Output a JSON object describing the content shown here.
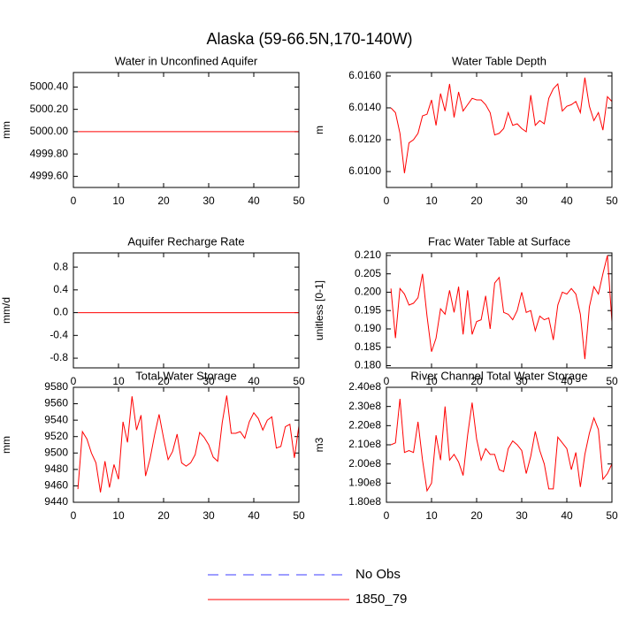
{
  "title": "Alaska (59-66.5N,170-140W)",
  "legend": [
    {
      "name": "No Obs",
      "color": "#3c3cff",
      "dashed": true
    },
    {
      "name": "1850_79",
      "color": "#ff0000",
      "dashed": false
    }
  ],
  "chart_data": [
    {
      "type": "line",
      "title": "Water in Unconfined Aquifer",
      "ylabel": "mm",
      "x": [
        1,
        2,
        3,
        4,
        5,
        6,
        7,
        8,
        9,
        10,
        11,
        12,
        13,
        14,
        15,
        16,
        17,
        18,
        19,
        20,
        21,
        22,
        23,
        24,
        25,
        26,
        27,
        28,
        29,
        30,
        31,
        32,
        33,
        34,
        35,
        36,
        37,
        38,
        39,
        40,
        41,
        42,
        43,
        44,
        45,
        46,
        47,
        48,
        49,
        50
      ],
      "xlim": [
        0,
        50
      ],
      "xticks": [
        0,
        10,
        20,
        30,
        40,
        50
      ],
      "ylim": [
        4999.5,
        5000.53
      ],
      "yticks": [
        {
          "value": 4999.6,
          "label": "4999.60"
        },
        {
          "value": 4999.8,
          "label": "4999.80"
        },
        {
          "value": 5000,
          "label": "5000.00"
        },
        {
          "value": 5000.2,
          "label": "5000.20"
        },
        {
          "value": 5000.4,
          "label": "5000.40"
        }
      ],
      "color": "#ff0000",
      "values": [
        5000,
        5000,
        5000,
        5000,
        5000,
        5000,
        5000,
        5000,
        5000,
        5000,
        5000,
        5000,
        5000,
        5000,
        5000,
        5000,
        5000,
        5000,
        5000,
        5000,
        5000,
        5000,
        5000,
        5000,
        5000,
        5000,
        5000,
        5000,
        5000,
        5000,
        5000,
        5000,
        5000,
        5000,
        5000,
        5000,
        5000,
        5000,
        5000,
        5000,
        5000,
        5000,
        5000,
        5000,
        5000,
        5000,
        5000,
        5000,
        5000,
        5000
      ]
    },
    {
      "type": "line",
      "title": "Water Table Depth",
      "ylabel": "m",
      "x": [
        1,
        2,
        3,
        4,
        5,
        6,
        7,
        8,
        9,
        10,
        11,
        12,
        13,
        14,
        15,
        16,
        17,
        18,
        19,
        20,
        21,
        22,
        23,
        24,
        25,
        26,
        27,
        28,
        29,
        30,
        31,
        32,
        33,
        34,
        35,
        36,
        37,
        38,
        39,
        40,
        41,
        42,
        43,
        44,
        45,
        46,
        47,
        48,
        49,
        50
      ],
      "xlim": [
        0,
        50
      ],
      "xticks": [
        0,
        10,
        20,
        30,
        40,
        50
      ],
      "ylim": [
        6.009,
        6.01622
      ],
      "yticks": [
        {
          "value": 6.01,
          "label": "6.0100"
        },
        {
          "value": 6.012,
          "label": "6.0120"
        },
        {
          "value": 6.014,
          "label": "6.0140"
        },
        {
          "value": 6.016,
          "label": "6.0160"
        }
      ],
      "color": "#ff0000",
      "values": [
        6.014,
        6.0137,
        6.0124,
        6.0099,
        6.0118,
        6.012,
        6.0124,
        6.0135,
        6.0136,
        6.0145,
        6.0129,
        6.0149,
        6.0138,
        6.0155,
        6.0134,
        6.015,
        6.0138,
        6.0142,
        6.0146,
        6.0145,
        6.0145,
        6.0142,
        6.0137,
        6.0123,
        6.0124,
        6.0127,
        6.0137,
        6.0129,
        6.013,
        6.0127,
        6.0125,
        6.0148,
        6.0129,
        6.0132,
        6.013,
        6.0146,
        6.0152,
        6.0155,
        6.0138,
        6.0141,
        6.0142,
        6.0144,
        6.0137,
        6.0159,
        6.0141,
        6.0132,
        6.0137,
        6.0126,
        6.0147,
        6.0144
      ]
    },
    {
      "type": "line",
      "title": "Aquifer Recharge Rate",
      "ylabel": "mm/d",
      "x": [
        1,
        2,
        3,
        4,
        5,
        6,
        7,
        8,
        9,
        10,
        11,
        12,
        13,
        14,
        15,
        16,
        17,
        18,
        19,
        20,
        21,
        22,
        23,
        24,
        25,
        26,
        27,
        28,
        29,
        30,
        31,
        32,
        33,
        34,
        35,
        36,
        37,
        38,
        39,
        40,
        41,
        42,
        43,
        44,
        45,
        46,
        47,
        48,
        49,
        50
      ],
      "xlim": [
        0,
        50
      ],
      "xticks": [
        0,
        10,
        20,
        30,
        40,
        50
      ],
      "ylim": [
        -0.97,
        1.05
      ],
      "yticks": [
        -0.8,
        -0.4,
        {
          "value": 0,
          "label": "0.0"
        },
        0.4,
        0.8
      ],
      "color": "#ff0000",
      "values": [
        0,
        0,
        0,
        0,
        0,
        0,
        0,
        0,
        0,
        0,
        0,
        0,
        0,
        0,
        0,
        0,
        0,
        0,
        0,
        0,
        0,
        0,
        0,
        0,
        0,
        0,
        0,
        0,
        0,
        0,
        0,
        0,
        0,
        0,
        0,
        0,
        0,
        0,
        0,
        0,
        0,
        0,
        0,
        0,
        0,
        0,
        0,
        0,
        0,
        0
      ]
    },
    {
      "type": "line",
      "title": "Frac Water Table at Surface",
      "ylabel": "unitless [0-1]",
      "x": [
        1,
        2,
        3,
        4,
        5,
        6,
        7,
        8,
        9,
        10,
        11,
        12,
        13,
        14,
        15,
        16,
        17,
        18,
        19,
        20,
        21,
        22,
        23,
        24,
        25,
        26,
        27,
        28,
        29,
        30,
        31,
        32,
        33,
        34,
        35,
        36,
        37,
        38,
        39,
        40,
        41,
        42,
        43,
        44,
        45,
        46,
        47,
        48,
        49,
        50
      ],
      "xlim": [
        0,
        50
      ],
      "xticks": [
        0,
        10,
        20,
        30,
        40,
        50
      ],
      "ylim": [
        0.1794,
        0.2107
      ],
      "yticks": [
        {
          "value": 0.18,
          "label": "0.180"
        },
        0.185,
        {
          "value": 0.19,
          "label": "0.190"
        },
        0.195,
        {
          "value": 0.2,
          "label": "0.200"
        },
        0.205,
        {
          "value": 0.21,
          "label": "0.210"
        }
      ],
      "color": "#ff0000",
      "values": [
        0.201,
        0.1875,
        0.201,
        0.1995,
        0.1965,
        0.197,
        0.1985,
        0.205,
        0.1935,
        0.1838,
        0.1875,
        0.1955,
        0.194,
        0.2005,
        0.1945,
        0.2015,
        0.1885,
        0.2005,
        0.1885,
        0.192,
        0.1925,
        0.199,
        0.19,
        0.2025,
        0.204,
        0.1945,
        0.194,
        0.1925,
        0.195,
        0.2,
        0.1945,
        0.195,
        0.1895,
        0.1935,
        0.1925,
        0.193,
        0.187,
        0.1965,
        0.2,
        0.1995,
        0.201,
        0.1995,
        0.194,
        0.1818,
        0.196,
        0.2015,
        0.1995,
        0.205,
        0.21,
        0.192
      ]
    },
    {
      "type": "line",
      "title": "Total Water Storage",
      "ylabel": "mm",
      "x": [
        1,
        2,
        3,
        4,
        5,
        6,
        7,
        8,
        9,
        10,
        11,
        12,
        13,
        14,
        15,
        16,
        17,
        18,
        19,
        20,
        21,
        22,
        23,
        24,
        25,
        26,
        27,
        28,
        29,
        30,
        31,
        32,
        33,
        34,
        35,
        36,
        37,
        38,
        39,
        40,
        41,
        42,
        43,
        44,
        45,
        46,
        47,
        48,
        49,
        50
      ],
      "xlim": [
        0,
        50
      ],
      "xticks": [
        0,
        10,
        20,
        30,
        40,
        50
      ],
      "ylim": [
        9440,
        9580
      ],
      "yticks": [
        9440,
        9460,
        9480,
        9500,
        9520,
        9540,
        9560,
        9580
      ],
      "color": "#ff0000",
      "values": [
        9456,
        9526,
        9517,
        9500,
        9488,
        9452,
        9490,
        9458,
        9486,
        9468,
        9538,
        9513,
        9569,
        9528,
        9546,
        9472,
        9493,
        9522,
        9547,
        9518,
        9492,
        9502,
        9523,
        9488,
        9484,
        9488,
        9498,
        9525,
        9519,
        9510,
        9495,
        9490,
        9537,
        9570,
        9524,
        9524,
        9526,
        9518,
        9538,
        9549,
        9542,
        9528,
        9540,
        9544,
        9506,
        9508,
        9532,
        9535,
        9494,
        9533
      ]
    },
    {
      "type": "line",
      "title": "River Channel Total Water Storage",
      "ylabel": "m3",
      "x": [
        1,
        2,
        3,
        4,
        5,
        6,
        7,
        8,
        9,
        10,
        11,
        12,
        13,
        14,
        15,
        16,
        17,
        18,
        19,
        20,
        21,
        22,
        23,
        24,
        25,
        26,
        27,
        28,
        29,
        30,
        31,
        32,
        33,
        34,
        35,
        36,
        37,
        38,
        39,
        40,
        41,
        42,
        43,
        44,
        45,
        46,
        47,
        48,
        49,
        50
      ],
      "xlim": [
        0,
        50
      ],
      "xticks": [
        0,
        10,
        20,
        30,
        40,
        50
      ],
      "ylim": [
        180000000,
        240000000
      ],
      "yticks": [
        {
          "value": 180000000,
          "label": "1.80e8"
        },
        {
          "value": 190000000,
          "label": "1.90e8"
        },
        {
          "value": 200000000,
          "label": "2.00e8"
        },
        {
          "value": 210000000,
          "label": "2.10e8"
        },
        {
          "value": 220000000,
          "label": "2.20e8"
        },
        {
          "value": 230000000,
          "label": "2.30e8"
        },
        {
          "value": 240000000,
          "label": "2.40e8"
        }
      ],
      "color": "#ff0000",
      "values": [
        210000000,
        211000000,
        234000000,
        206000000,
        207000000,
        206000000,
        222000000,
        202000000,
        186000000,
        190000000,
        215000000,
        202000000,
        230000000,
        202000000,
        205000000,
        201000000,
        194000000,
        215000000,
        232000000,
        213000000,
        202000000,
        208000000,
        205000000,
        205000000,
        197000000,
        196000000,
        208000000,
        212000000,
        210000000,
        207000000,
        195000000,
        204000000,
        217000000,
        207000000,
        200000000,
        187000000,
        187000000,
        214000000,
        211000000,
        208000000,
        197000000,
        206000000,
        188000000,
        205000000,
        216000000,
        224000000,
        218000000,
        192000000,
        195000000,
        200000000
      ]
    }
  ]
}
